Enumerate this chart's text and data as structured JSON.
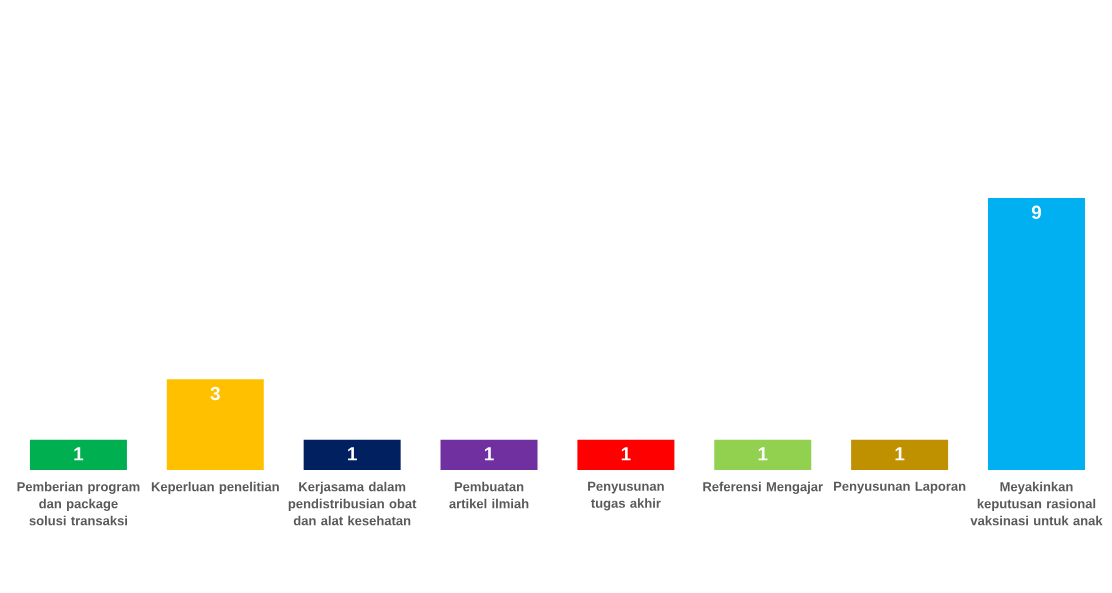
{
  "chart_data": {
    "type": "bar",
    "categories": [
      "Pemberian program dan package solusi transaksi",
      "Keperluan penelitian",
      "Kerjasama dalam pendistribusian obat dan alat kesehatan",
      "Pembuatan artikel ilmiah",
      "Penyusunan tugas akhir",
      "Referensi Mengajar",
      "Penyusunan Laporan",
      "Meyakinkan keputusan rasional vaksinasi untuk anak"
    ],
    "values": [
      1,
      3,
      1,
      1,
      1,
      1,
      1,
      9
    ],
    "colors": [
      "#00b050",
      "#ffc000",
      "#002060",
      "#7030a0",
      "#ff0000",
      "#92d050",
      "#bf9000",
      "#00b0f0"
    ],
    "data_labels": true
  }
}
